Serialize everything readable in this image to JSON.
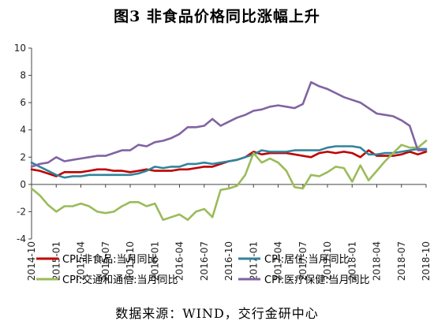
{
  "figure": {
    "title": "图3 非食品价格同比涨幅上升",
    "source": "数据来源：WIND，交行金研中心"
  },
  "chart_data": {
    "type": "line",
    "ylim": [
      -4,
      10
    ],
    "yticks": [
      -4,
      -2,
      0,
      2,
      4,
      6,
      8,
      10
    ],
    "grid": false,
    "legend_position": "bottom",
    "x": [
      "2014-10",
      "2014-11",
      "2014-12",
      "2015-01",
      "2015-02",
      "2015-03",
      "2015-04",
      "2015-05",
      "2015-06",
      "2015-07",
      "2015-08",
      "2015-09",
      "2015-10",
      "2015-11",
      "2015-12",
      "2016-01",
      "2016-02",
      "2016-03",
      "2016-04",
      "2016-05",
      "2016-06",
      "2016-07",
      "2016-08",
      "2016-09",
      "2016-10",
      "2016-11",
      "2016-12",
      "2017-01",
      "2017-02",
      "2017-03",
      "2017-04",
      "2017-05",
      "2017-06",
      "2017-07",
      "2017-08",
      "2017-09",
      "2017-10",
      "2017-11",
      "2017-12",
      "2018-01",
      "2018-02",
      "2018-03",
      "2018-04",
      "2018-05",
      "2018-06",
      "2018-07",
      "2018-08",
      "2018-09",
      "2018-10"
    ],
    "xtick_labels": [
      "2014-10",
      "2015-01",
      "2015-04",
      "2015-07",
      "2015-10",
      "2016-01",
      "2016-04",
      "2016-07",
      "2016-10",
      "2017-01",
      "2017-04",
      "2017-07",
      "2017-10",
      "2018-01",
      "2018-04",
      "2018-07",
      "2018-10"
    ],
    "series": [
      {
        "name": "CPI:非食品:当月同比",
        "color": "#c00000",
        "values": [
          1.1,
          1.0,
          0.8,
          0.6,
          0.9,
          0.9,
          0.9,
          1.0,
          1.1,
          1.1,
          1.0,
          1.0,
          0.9,
          1.0,
          1.1,
          1.0,
          1.0,
          1.0,
          1.1,
          1.1,
          1.2,
          1.3,
          1.3,
          1.5,
          1.7,
          1.8,
          2.0,
          2.4,
          2.2,
          2.3,
          2.3,
          2.3,
          2.2,
          2.1,
          2.0,
          2.3,
          2.4,
          2.3,
          2.4,
          2.3,
          2.0,
          2.5,
          2.1,
          2.1,
          2.1,
          2.2,
          2.4,
          2.2,
          2.4
        ]
      },
      {
        "name": "CPI:居住:当月同比",
        "color": "#31849b",
        "values": [
          1.6,
          1.3,
          1.0,
          0.7,
          0.5,
          0.6,
          0.6,
          0.7,
          0.7,
          0.7,
          0.7,
          0.7,
          0.7,
          0.8,
          1.0,
          1.3,
          1.2,
          1.3,
          1.3,
          1.5,
          1.5,
          1.6,
          1.5,
          1.6,
          1.7,
          1.8,
          2.0,
          2.2,
          2.5,
          2.4,
          2.4,
          2.4,
          2.5,
          2.5,
          2.5,
          2.5,
          2.7,
          2.8,
          2.8,
          2.8,
          2.7,
          2.2,
          2.2,
          2.3,
          2.3,
          2.4,
          2.5,
          2.6,
          2.6
        ]
      },
      {
        "name": "CPI:交通和通信:当月同比",
        "color": "#9bbb59",
        "values": [
          -0.3,
          -0.8,
          -1.5,
          -2.0,
          -1.6,
          -1.6,
          -1.4,
          -1.6,
          -2.0,
          -2.1,
          -2.0,
          -1.6,
          -1.3,
          -1.3,
          -1.6,
          -1.4,
          -2.6,
          -2.4,
          -2.2,
          -2.6,
          -2.0,
          -1.8,
          -2.4,
          -0.4,
          -0.3,
          -0.1,
          0.7,
          2.3,
          1.6,
          1.9,
          1.6,
          1.0,
          -0.2,
          -0.3,
          0.7,
          0.6,
          0.9,
          1.3,
          1.2,
          0.2,
          1.4,
          0.3,
          1.0,
          1.7,
          2.3,
          2.9,
          2.7,
          2.7,
          3.2
        ]
      },
      {
        "name": "CPI:医疗保健:当月同比",
        "color": "#8064a2",
        "values": [
          1.3,
          1.5,
          1.6,
          2.0,
          1.7,
          1.8,
          1.9,
          2.0,
          2.1,
          2.1,
          2.3,
          2.5,
          2.5,
          2.9,
          2.8,
          3.1,
          3.2,
          3.4,
          3.7,
          4.2,
          4.2,
          4.3,
          4.8,
          4.3,
          4.6,
          4.9,
          5.1,
          5.4,
          5.5,
          5.7,
          5.8,
          5.7,
          5.6,
          5.9,
          7.5,
          7.2,
          7.0,
          6.7,
          6.4,
          6.2,
          6.0,
          5.6,
          5.2,
          5.1,
          5.0,
          4.7,
          4.3,
          2.5,
          2.5
        ]
      }
    ]
  }
}
